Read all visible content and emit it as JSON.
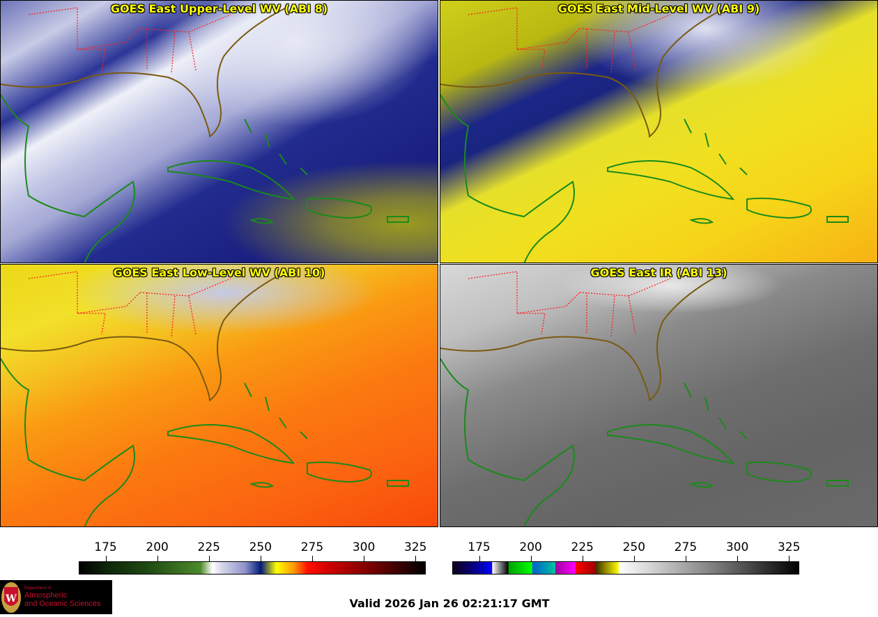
{
  "panels": [
    {
      "title": "GOES East Upper-Level WV (ABI 8)"
    },
    {
      "title": "GOES East Mid-Level WV (ABI 9)"
    },
    {
      "title": "GOES East Low-Level WV (ABI 10)"
    },
    {
      "title": "GOES East IR (ABI 13)"
    }
  ],
  "colorbars": [
    {
      "name": "water-vapor",
      "range": [
        162,
        330
      ],
      "ticks": [
        "175",
        "200",
        "225",
        "250",
        "275",
        "300",
        "325"
      ]
    },
    {
      "name": "infrared",
      "range": [
        162,
        330
      ],
      "ticks": [
        "175",
        "200",
        "225",
        "250",
        "275",
        "300",
        "325"
      ]
    }
  ],
  "logo": {
    "line1": "Department of",
    "line2": "Atmospheric",
    "line3": "and Oceanic Sciences",
    "seal": "W"
  },
  "valid_time": "Valid 2026 Jan 26 02:21:17 GMT",
  "colors": {
    "title": "#ffff00",
    "coast": "#1a8a1a",
    "borders": "#ff2020",
    "logo_text": "#c8102e"
  }
}
